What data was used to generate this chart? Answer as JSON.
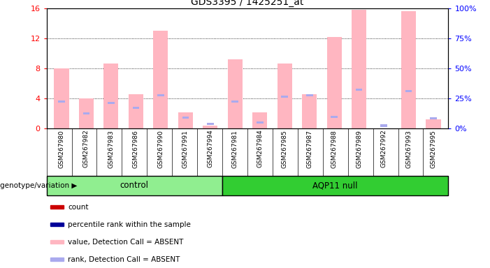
{
  "title": "GDS3395 / 1425251_at",
  "samples": [
    "GSM267980",
    "GSM267982",
    "GSM267983",
    "GSM267986",
    "GSM267990",
    "GSM267991",
    "GSM267994",
    "GSM267981",
    "GSM267984",
    "GSM267985",
    "GSM267987",
    "GSM267988",
    "GSM267989",
    "GSM267992",
    "GSM267993",
    "GSM267995"
  ],
  "n_control": 7,
  "n_aqp11": 9,
  "pink_bars": [
    8.0,
    4.0,
    8.6,
    4.6,
    13.0,
    2.2,
    0.4,
    9.2,
    2.2,
    8.6,
    4.6,
    12.2,
    15.8,
    0.0,
    15.6,
    1.2
  ],
  "blue_bars": [
    3.6,
    2.0,
    3.4,
    2.8,
    4.4,
    1.5,
    0.6,
    3.6,
    0.8,
    4.2,
    4.4,
    1.6,
    5.2,
    0.4,
    5.0,
    1.4
  ],
  "ylim": [
    0,
    16
  ],
  "yticks_left": [
    0,
    4,
    8,
    12,
    16
  ],
  "yticks_right": [
    0,
    25,
    50,
    75,
    100
  ],
  "control_color": "#90EE90",
  "aqp11_color": "#32CD32",
  "pink_color": "#FFB6C1",
  "blue_bar_color": "#AAAAEE",
  "red_color": "#CC0000",
  "blue_color": "#000099",
  "bg_color": "#CCCCCC",
  "title_fontsize": 10,
  "tick_label_fontsize": 6.5,
  "legend_fontsize": 7.5,
  "group_label_fontsize": 8.5
}
